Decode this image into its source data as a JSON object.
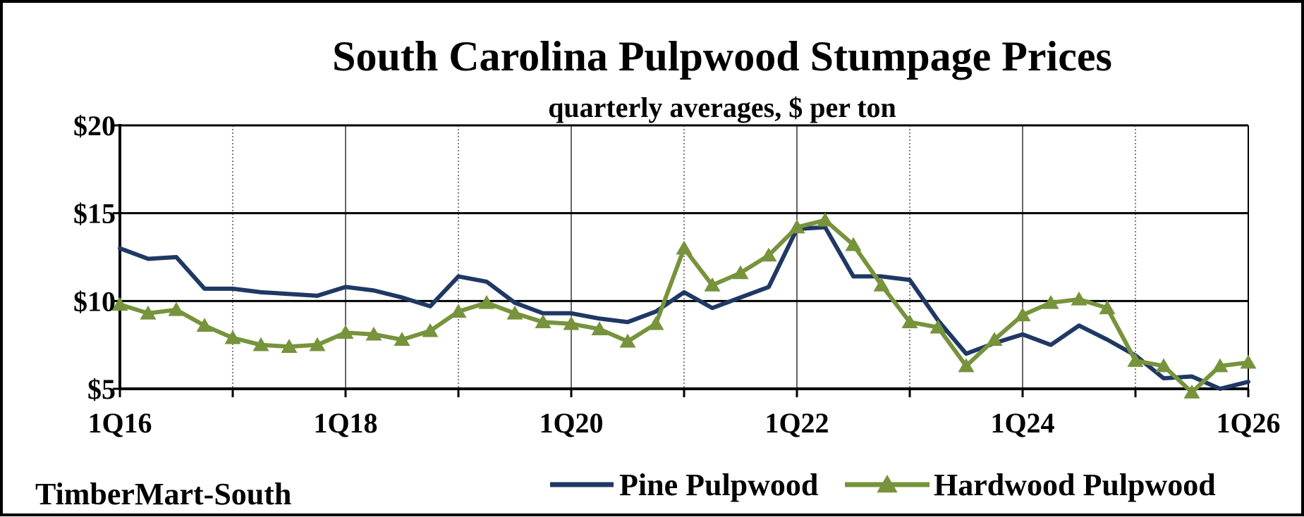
{
  "chart_data": {
    "type": "line",
    "title": "South Carolina Pulpwood Stumpage Prices",
    "subtitle": "quarterly averages, $ per ton",
    "source": "TimberMart-South",
    "x": [
      "1Q16",
      "2Q16",
      "3Q16",
      "4Q16",
      "1Q17",
      "2Q17",
      "3Q17",
      "4Q17",
      "1Q18",
      "2Q18",
      "3Q18",
      "4Q18",
      "1Q19",
      "2Q19",
      "3Q19",
      "4Q19",
      "1Q20",
      "2Q20",
      "3Q20",
      "4Q20",
      "1Q21",
      "2Q21",
      "3Q21",
      "4Q21",
      "1Q22",
      "2Q22",
      "3Q22",
      "4Q22",
      "1Q23",
      "2Q23",
      "3Q23",
      "4Q23",
      "1Q24",
      "2Q24",
      "3Q24",
      "4Q24",
      "1Q25",
      "2Q25",
      "3Q25",
      "4Q25",
      "1Q26"
    ],
    "x_tick_labels": [
      "1Q16",
      "1Q18",
      "1Q20",
      "1Q22",
      "1Q24",
      "1Q26"
    ],
    "ylim": [
      5,
      20
    ],
    "y_ticks": [
      5,
      10,
      15,
      20
    ],
    "y_tick_labels": [
      "$5",
      "$10",
      "$15",
      "$20"
    ],
    "grid": {
      "horizontal": "solid",
      "vertical": "dotted"
    },
    "legend": "bottom-right",
    "series": [
      {
        "name": "Pine Pulpwood",
        "color": "#1f3864",
        "marker": "none",
        "values": [
          13.0,
          12.4,
          12.5,
          10.7,
          10.7,
          10.5,
          10.4,
          10.3,
          10.8,
          10.6,
          10.2,
          9.7,
          11.4,
          11.1,
          9.9,
          9.3,
          9.3,
          9.0,
          8.8,
          9.4,
          10.5,
          9.6,
          10.2,
          10.8,
          14.1,
          14.2,
          11.4,
          11.4,
          11.2,
          8.9,
          7.0,
          7.6,
          8.1,
          7.5,
          8.6,
          7.8,
          6.9,
          5.6,
          5.7,
          5.0,
          5.4
        ]
      },
      {
        "name": "Hardwood Pulpwood",
        "color": "#77933c",
        "marker": "triangle",
        "values": [
          9.8,
          9.3,
          9.5,
          8.6,
          7.9,
          7.5,
          7.4,
          7.5,
          8.2,
          8.1,
          7.8,
          8.3,
          9.4,
          9.9,
          9.3,
          8.8,
          8.7,
          8.4,
          7.7,
          8.7,
          13.0,
          10.9,
          11.6,
          12.6,
          14.2,
          14.6,
          13.2,
          10.9,
          8.8,
          8.5,
          6.3,
          7.8,
          9.2,
          9.9,
          10.1,
          9.6,
          6.6,
          6.3,
          4.8,
          6.3,
          6.5
        ]
      }
    ]
  }
}
